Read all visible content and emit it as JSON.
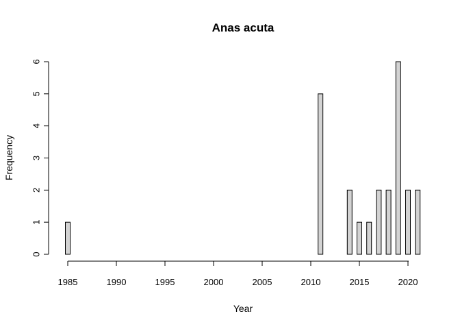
{
  "chart_data": {
    "type": "bar",
    "title": "Anas acuta",
    "xlabel": "Year",
    "ylabel": "Frequency",
    "x": [
      1985,
      1986,
      1987,
      1988,
      1989,
      1990,
      1991,
      1992,
      1993,
      1994,
      1995,
      1996,
      1997,
      1998,
      1999,
      2000,
      2001,
      2002,
      2003,
      2004,
      2005,
      2006,
      2007,
      2008,
      2009,
      2010,
      2011,
      2012,
      2013,
      2014,
      2015,
      2016,
      2017,
      2018,
      2019,
      2020,
      2021
    ],
    "values": [
      1,
      0,
      0,
      0,
      0,
      0,
      0,
      0,
      0,
      0,
      0,
      0,
      0,
      0,
      0,
      0,
      0,
      0,
      0,
      0,
      0,
      0,
      0,
      0,
      0,
      0,
      5,
      0,
      0,
      2,
      1,
      1,
      2,
      2,
      6,
      2,
      2
    ],
    "xticks": [
      "1985",
      "1990",
      "1995",
      "2000",
      "2005",
      "2010",
      "2015",
      "2020"
    ],
    "yticks": [
      "0",
      "1",
      "2",
      "3",
      "4",
      "5",
      "6"
    ],
    "ylim": [
      0,
      6
    ],
    "xlim": [
      1984.5,
      2021.5
    ],
    "grid": false,
    "bar_color": "#d3d3d3"
  }
}
